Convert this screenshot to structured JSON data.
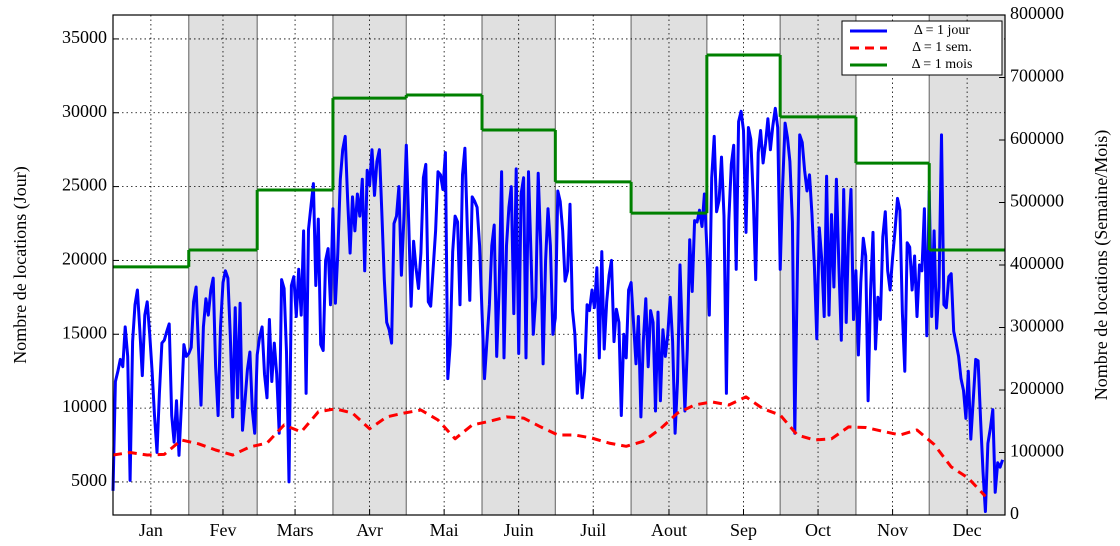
{
  "chart_data": {
    "type": "line",
    "ylabel": "Nombre de locations (Jour)",
    "y2label": "Nombre de locations (Semaine/Mois)",
    "xlim": [
      0,
      365
    ],
    "xticks": [
      {
        "value": 15.5,
        "label": "Jan"
      },
      {
        "value": 45,
        "label": "Fev"
      },
      {
        "value": 74.5,
        "label": "Mars"
      },
      {
        "value": 105,
        "label": "Avr"
      },
      {
        "value": 135.5,
        "label": "Mai"
      },
      {
        "value": 166,
        "label": "Juin"
      },
      {
        "value": 196.5,
        "label": "Juil"
      },
      {
        "value": 227.5,
        "label": "Aout"
      },
      {
        "value": 258,
        "label": "Sep"
      },
      {
        "value": 288.5,
        "label": "Oct"
      },
      {
        "value": 319,
        "label": "Nov"
      },
      {
        "value": 349.5,
        "label": "Dec"
      }
    ],
    "ylim": [
      2760,
      36620
    ],
    "yticks": [
      5000,
      10000,
      15000,
      20000,
      25000,
      30000,
      35000
    ],
    "y2lim": [
      0,
      800000
    ],
    "y2ticks": [
      0,
      100000,
      200000,
      300000,
      400000,
      500000,
      600000,
      700000,
      800000
    ],
    "grid": true,
    "legend": "upper right",
    "series": [
      {
        "name": "Δ = 1 jour",
        "color": "#0000ff",
        "style": "solid",
        "x": [
          0,
          1,
          2,
          3,
          4,
          5,
          6,
          7,
          8,
          9,
          10,
          11,
          12,
          13,
          14,
          15,
          16,
          17,
          18,
          19,
          20,
          21,
          22,
          23,
          24,
          25,
          26,
          27,
          28,
          29,
          30,
          31,
          32,
          33,
          34,
          35,
          36,
          37,
          38,
          39,
          40,
          41,
          42,
          43,
          44,
          45,
          46,
          47,
          48,
          49,
          50,
          51,
          52,
          53,
          54,
          55,
          56,
          57,
          58,
          59,
          60,
          61,
          62,
          63,
          64,
          65,
          66,
          67,
          68,
          69,
          70,
          71,
          72,
          73,
          74,
          75,
          76,
          77,
          78,
          79,
          80,
          81,
          82,
          83,
          84,
          85,
          86,
          87,
          88,
          89,
          90,
          91,
          92,
          93,
          94,
          95,
          96,
          97,
          98,
          99,
          100,
          101,
          102,
          103,
          104,
          105,
          106,
          107,
          108,
          109,
          110,
          111,
          112,
          113,
          114,
          115,
          116,
          117,
          118,
          119,
          120,
          121,
          122,
          123,
          124,
          125,
          126,
          127,
          128,
          129,
          130,
          131,
          132,
          133,
          134,
          135,
          136,
          137,
          138,
          139,
          140,
          141,
          142,
          143,
          144,
          145,
          146,
          147,
          148,
          149,
          150,
          151,
          152,
          153,
          154,
          155,
          156,
          157,
          158,
          159,
          160,
          161,
          162,
          163,
          164,
          165,
          166,
          167,
          168,
          169,
          170,
          171,
          172,
          173,
          174,
          175,
          176,
          177,
          178,
          179,
          180,
          181,
          182,
          183,
          184,
          185,
          186,
          187,
          188,
          189,
          190,
          191,
          192,
          193,
          194,
          195,
          196,
          197,
          198,
          199,
          200,
          201,
          202,
          203,
          204,
          205,
          206,
          207,
          208,
          209,
          210,
          211,
          212,
          213,
          214,
          215,
          216,
          217,
          218,
          219,
          220,
          221,
          222,
          223,
          224,
          225,
          226,
          227,
          228,
          229,
          230,
          231,
          232,
          233,
          234,
          235,
          236,
          237,
          238,
          239,
          240,
          241,
          242,
          243,
          244,
          245,
          246,
          247,
          248,
          249,
          250,
          251,
          252,
          253,
          254,
          255,
          256,
          257,
          258,
          259,
          260,
          261,
          262,
          263,
          264,
          265,
          266,
          267,
          268,
          269,
          270,
          271,
          272,
          273,
          274,
          275,
          276,
          277,
          278,
          279,
          280,
          281,
          282,
          283,
          284,
          285,
          286,
          287,
          288,
          289,
          290,
          291,
          292,
          293,
          294,
          295,
          296,
          297,
          298,
          299,
          300,
          301,
          302,
          303,
          304,
          305,
          306,
          307,
          308,
          309,
          310,
          311,
          312,
          313,
          314,
          315,
          316,
          317,
          318,
          319,
          320,
          321,
          322,
          323,
          324,
          325,
          326,
          327,
          328,
          329,
          330,
          331,
          332,
          333,
          334,
          335,
          336,
          337,
          338,
          339,
          340,
          341,
          342,
          343,
          344,
          345,
          346,
          347,
          348,
          349,
          350,
          351,
          352,
          353,
          354,
          355,
          356,
          357,
          358,
          359,
          360,
          361,
          362,
          363,
          364
        ],
        "values": [
          4400,
          11800,
          12500,
          13300,
          12800,
          15500,
          13500,
          5100,
          14500,
          17000,
          18000,
          15200,
          12200,
          16300,
          17200,
          15000,
          12500,
          9500,
          7000,
          11000,
          14400,
          14600,
          15200,
          15700,
          9500,
          7700,
          10500,
          6800,
          10200,
          14300,
          13500,
          13700,
          14100,
          17200,
          18200,
          14000,
          10200,
          15500,
          17400,
          16300,
          18000,
          18800,
          12800,
          9500,
          15500,
          18500,
          19300,
          18800,
          14900,
          9400,
          16800,
          10700,
          17100,
          8500,
          10500,
          12600,
          13800,
          9900,
          8300,
          13600,
          14800,
          15500,
          12300,
          10700,
          16000,
          11800,
          14400,
          12300,
          8300,
          18700,
          18100,
          13800,
          5000,
          18300,
          18900,
          16200,
          19400,
          16300,
          22000,
          11000,
          22100,
          23700,
          25200,
          18300,
          22800,
          14300,
          13900,
          20000,
          20800,
          17000,
          23500,
          17100,
          20500,
          25500,
          27500,
          28400,
          24200,
          20500,
          24300,
          22000,
          24500,
          23000,
          25500,
          19300,
          26100,
          25100,
          27500,
          24400,
          26700,
          27500,
          23300,
          18700,
          15800,
          15300,
          14400,
          22500,
          23000,
          25000,
          19000,
          22700,
          27800,
          22600,
          16900,
          21300,
          19500,
          18100,
          20500,
          25600,
          26500,
          17200,
          16900,
          19400,
          22000,
          26000,
          25800,
          24800,
          27300,
          12000,
          14300,
          20600,
          23000,
          22600,
          17000,
          25800,
          27600,
          22000,
          17300,
          24300,
          24000,
          23600,
          21000,
          16500,
          12000,
          14500,
          17000,
          21000,
          22400,
          13500,
          18000,
          26000,
          13400,
          21000,
          23600,
          25000,
          16400,
          26200,
          13700,
          24500,
          25600,
          13400,
          26000,
          20600,
          15000,
          17500,
          25900,
          21000,
          13000,
          20000,
          23500,
          21000,
          15000,
          16100,
          24700,
          24000,
          22000,
          18600,
          19300,
          23800,
          16700,
          15000,
          11000,
          13600,
          10700,
          12500,
          17000,
          16600,
          18000,
          16800,
          19500,
          13400,
          20600,
          14000,
          17200,
          19000,
          20000,
          14500,
          16700,
          15800,
          9500,
          15000,
          13400,
          18000,
          18500,
          15800,
          13000,
          16200,
          9400,
          14500,
          17400,
          12800,
          16600,
          15800,
          9800,
          16500,
          10500,
          15300,
          13500,
          15000,
          17500,
          14500,
          8300,
          11800,
          19700,
          14700,
          9800,
          14000,
          21400,
          17900,
          22700,
          22600,
          23400,
          22300,
          24500,
          20800,
          16300,
          25600,
          28400,
          23300,
          24100,
          27000,
          23000,
          11000,
          22700,
          26500,
          27800,
          19400,
          29400,
          30100,
          28800,
          21900,
          29000,
          28200,
          24200,
          18700,
          27300,
          28800,
          26600,
          27900,
          29600,
          27500,
          29100,
          30300,
          29000,
          19400,
          25000,
          29300,
          28300,
          26700,
          22600,
          8300,
          19100,
          28500,
          28000,
          26100,
          24700,
          25800,
          23200,
          19600,
          14700,
          22200,
          20100,
          16200,
          25700,
          16300,
          23100,
          18200,
          25500,
          19800,
          14600,
          24800,
          15800,
          21800,
          24800,
          16000,
          19300,
          13600,
          18500,
          21500,
          20300,
          10500,
          18000,
          21900,
          14000,
          17500,
          16000,
          21600,
          23300,
          19300,
          18000,
          20200,
          22000,
          24200,
          23400,
          16400,
          12500,
          21200,
          20900,
          18000,
          20300,
          16200,
          19700,
          19300,
          23500,
          14900,
          24700,
          16200,
          22000,
          15400,
          18200,
          28500,
          17000,
          16800,
          18900,
          19100,
          15200,
          14400,
          13500,
          12000,
          11200,
          9300,
          12500,
          7900,
          10500,
          13300,
          13200,
          9200,
          5700,
          3000,
          7600,
          8600,
          9900,
          4300,
          6300,
          6000,
          6500
        ]
      },
      {
        "name": "Δ = 1 sem.",
        "color": "#ff0000",
        "style": "dashed",
        "axis": "y2",
        "x": [
          0,
          7,
          14,
          21,
          28,
          35,
          42,
          49,
          56,
          63,
          70,
          77,
          84,
          91,
          98,
          105,
          112,
          119,
          126,
          133,
          140,
          147,
          154,
          161,
          168,
          175,
          182,
          189,
          196,
          203,
          210,
          217,
          224,
          231,
          238,
          245,
          252,
          259,
          266,
          273,
          280,
          287,
          294,
          301,
          308,
          315,
          322,
          329,
          336,
          343,
          350,
          357
        ],
        "values": [
          96000,
          100000,
          96000,
          97000,
          120000,
          114000,
          104000,
          96000,
          109000,
          115000,
          144000,
          133000,
          165000,
          170000,
          163000,
          138000,
          157000,
          163000,
          168000,
          152000,
          122000,
          144000,
          150000,
          157000,
          155000,
          141000,
          128000,
          128000,
          123000,
          115000,
          110000,
          118000,
          138000,
          163000,
          176000,
          181000,
          176000,
          189000,
          170000,
          160000,
          128000,
          120000,
          122000,
          141000,
          140000,
          134000,
          128000,
          136000,
          113000,
          77000,
          59000,
          30000
        ]
      },
      {
        "name": "Δ = 1 mois",
        "color": "#008000",
        "style": "step",
        "axis": "y2",
        "x": [
          0,
          31,
          59,
          90,
          120,
          151,
          181,
          212,
          243,
          273,
          304,
          334
        ],
        "values": [
          397000,
          424000,
          520000,
          667000,
          672000,
          616000,
          533000,
          483000,
          736000,
          637000,
          563000,
          424000
        ]
      }
    ]
  }
}
